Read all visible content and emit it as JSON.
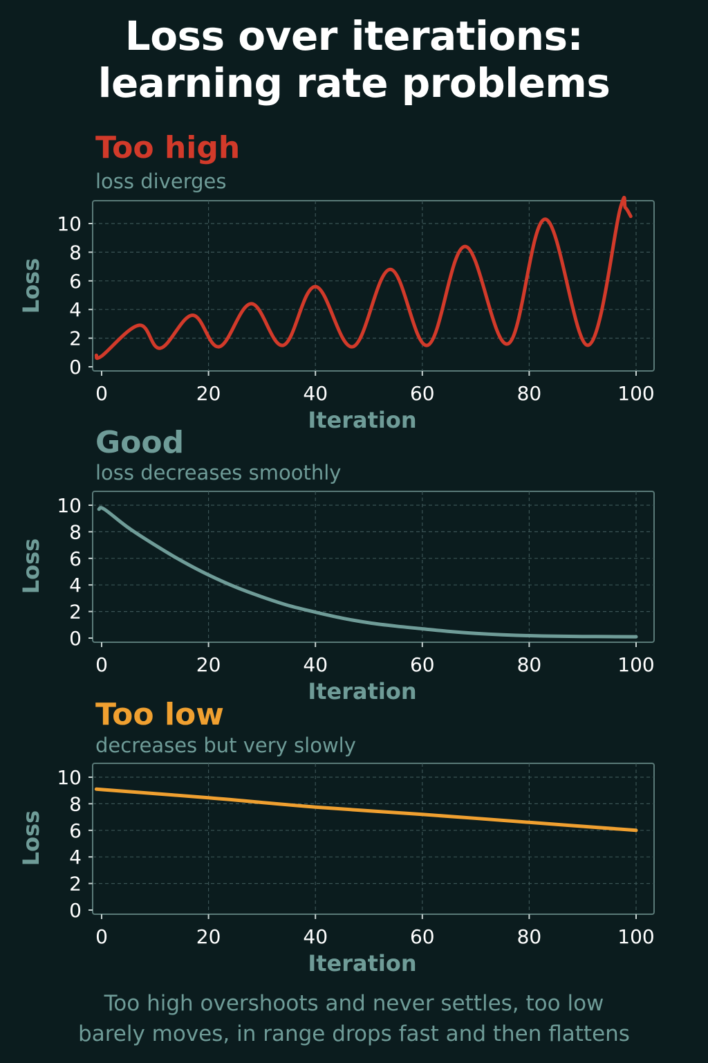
{
  "title": {
    "line1": "Loss over iterations:",
    "line2": "learning rate problems"
  },
  "panels": [
    {
      "title": "Too high",
      "subtitle": "loss diverges",
      "title_color": "#d23a2a"
    },
    {
      "title": "Good",
      "subtitle": "loss decreases smoothly",
      "title_color": "#6f9c98"
    },
    {
      "title": "Too low",
      "subtitle": "decreases but very slowly",
      "title_color": "#f0a030"
    }
  ],
  "footer": {
    "line1": "Too high overshoots and never settles, too low",
    "line2": "barely moves, in range drops fast and then flattens"
  },
  "chart_data": [
    {
      "type": "line",
      "title": "Too high",
      "subtitle": "loss diverges",
      "xlabel": "Iteration",
      "ylabel": "Loss",
      "xlim": [
        0,
        100
      ],
      "ylim": [
        0,
        10
      ],
      "xticks": [
        "0",
        "20",
        "40",
        "60",
        "80",
        "100"
      ],
      "yticks": [
        "0",
        "2",
        "4",
        "6",
        "8",
        "10"
      ],
      "grid": true,
      "series": [
        {
          "color": "#d23a2a",
          "x": [
            -1,
            0,
            7,
            11,
            17,
            22,
            28,
            34,
            40,
            47,
            54,
            61,
            68,
            76,
            83,
            91,
            97,
            98,
            99
          ],
          "y": [
            0.8,
            0.75,
            2.9,
            1.3,
            3.6,
            1.4,
            4.4,
            1.5,
            5.6,
            1.4,
            6.8,
            1.5,
            8.4,
            1.6,
            10.3,
            1.5,
            11.0,
            11.1,
            10.5
          ]
        }
      ]
    },
    {
      "type": "line",
      "title": "Good",
      "subtitle": "loss decreases smoothly",
      "xlabel": "Iteration",
      "ylabel": "Loss",
      "xlim": [
        0,
        100
      ],
      "ylim": [
        0,
        10
      ],
      "xticks": [
        "0",
        "20",
        "40",
        "60",
        "80",
        "100"
      ],
      "yticks": [
        "0",
        "2",
        "4",
        "6",
        "8",
        "10"
      ],
      "grid": true,
      "series": [
        {
          "color": "#6f9c98",
          "x": [
            -0.5,
            0.5,
            5,
            10,
            15,
            20,
            25,
            30,
            35,
            40,
            45,
            50,
            55,
            60,
            65,
            70,
            75,
            80,
            85,
            90,
            95,
            100
          ],
          "y": [
            9.7,
            9.7,
            8.3,
            7.0,
            5.8,
            4.75,
            3.85,
            3.1,
            2.45,
            1.95,
            1.5,
            1.15,
            0.9,
            0.7,
            0.5,
            0.35,
            0.25,
            0.18,
            0.14,
            0.12,
            0.11,
            0.1
          ]
        }
      ]
    },
    {
      "type": "line",
      "title": "Too low",
      "subtitle": "decreases but very slowly",
      "xlabel": "Iteration",
      "ylabel": "Loss",
      "xlim": [
        0,
        100
      ],
      "ylim": [
        0,
        10
      ],
      "xticks": [
        "0",
        "20",
        "40",
        "60",
        "80",
        "100"
      ],
      "yticks": [
        "0",
        "2",
        "4",
        "6",
        "8",
        "10"
      ],
      "grid": true,
      "series": [
        {
          "color": "#f0a030",
          "x": [
            -1,
            20,
            40,
            60,
            80,
            100
          ],
          "y": [
            9.1,
            8.45,
            7.75,
            7.2,
            6.6,
            6.0
          ]
        }
      ]
    }
  ]
}
